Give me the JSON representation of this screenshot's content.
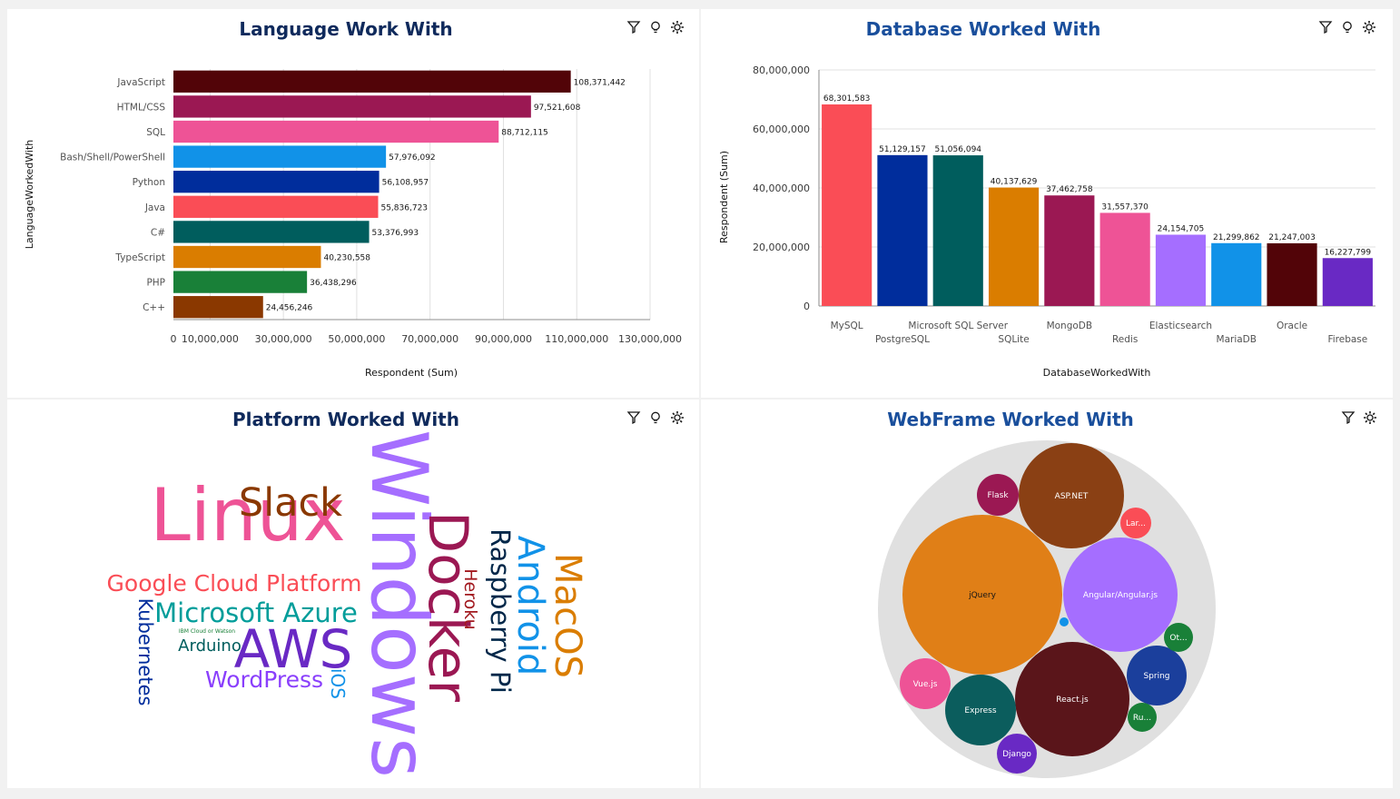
{
  "panels": {
    "language": {
      "title": "Language Work With"
    },
    "database": {
      "title": "Database Worked With"
    },
    "platform": {
      "title": "Platform Worked With"
    },
    "webframe": {
      "title": "WebFrame Worked With"
    }
  },
  "tool_icons": [
    "filter-icon",
    "lightbulb-icon",
    "settings-icon"
  ],
  "chart_data": [
    {
      "type": "bar",
      "orientation": "horizontal",
      "title": "Language Work With",
      "xlabel": "Respondent (Sum)",
      "ylabel": "LanguageWorkedWith",
      "categories": [
        "JavaScript",
        "HTML/CSS",
        "SQL",
        "Bash/Shell/PowerShell",
        "Python",
        "Java",
        "C#",
        "TypeScript",
        "PHP",
        "C++"
      ],
      "values": [
        108371442,
        97521608,
        88712115,
        57976092,
        56108957,
        55836723,
        53376993,
        40230558,
        36438296,
        24456246
      ],
      "labels": [
        "108,371,442",
        "97,521,608",
        "88,712,115",
        "57,976,092",
        "56,108,957",
        "55,836,723",
        "53,376,993",
        "40,230,558",
        "36,438,296",
        "24,456,246"
      ],
      "colors": [
        "#520408",
        "#9b1853",
        "#ee5396",
        "#1192e8",
        "#002d9c",
        "#fa4d56",
        "#005d5d",
        "#da7d00",
        "#198038",
        "#8a3800"
      ],
      "xticks": [
        "0",
        "10,000,000",
        "30,000,000",
        "50,000,000",
        "70,000,000",
        "90,000,000",
        "110,000,000",
        "130,000,000"
      ],
      "xtick_values": [
        0,
        10000000,
        30000000,
        50000000,
        70000000,
        90000000,
        110000000,
        130000000
      ],
      "xlim": [
        0,
        130000000
      ],
      "grid": true
    },
    {
      "type": "bar",
      "orientation": "vertical",
      "title": "Database Worked With",
      "xlabel": "DatabaseWorkedWith",
      "ylabel": "Respondent (Sum)",
      "categories": [
        "MySQL",
        "PostgreSQL",
        "Microsoft SQL Server",
        "SQLite",
        "MongoDB",
        "Redis",
        "Elasticsearch",
        "MariaDB",
        "Oracle",
        "Firebase"
      ],
      "values": [
        68301583,
        51129157,
        51056094,
        40137629,
        37462758,
        31557370,
        24154705,
        21299862,
        21247003,
        16227799
      ],
      "labels": [
        "68,301,583",
        "51,129,157",
        "51,056,094",
        "40,137,629",
        "37,462,758",
        "31,557,370",
        "24,154,705",
        "21,299,862",
        "21,247,003",
        "16,227,799"
      ],
      "colors": [
        "#fa4d56",
        "#002d9c",
        "#005d5d",
        "#da7d00",
        "#9b1853",
        "#ee5396",
        "#a56eff",
        "#1192e8",
        "#520408",
        "#6929c4"
      ],
      "yticks": [
        "0",
        "20,000,000",
        "40,000,000",
        "60,000,000",
        "80,000,000"
      ],
      "ytick_values": [
        0,
        20000000,
        40000000,
        60000000,
        80000000
      ],
      "ylim": [
        0,
        80000000
      ],
      "grid": true
    },
    {
      "type": "other",
      "subtype": "word_cloud",
      "title": "Platform Worked With",
      "words": [
        {
          "text": "Windows",
          "color": "#a56eff",
          "rotated": true
        },
        {
          "text": "Linux",
          "color": "#ee5396",
          "rotated": false
        },
        {
          "text": "Docker",
          "color": "#9b1853",
          "rotated": true
        },
        {
          "text": "AWS",
          "color": "#6929c4",
          "rotated": false
        },
        {
          "text": "Slack",
          "color": "#8a3800",
          "rotated": false
        },
        {
          "text": "Android",
          "color": "#1192e8",
          "rotated": true
        },
        {
          "text": "MacOS",
          "color": "#da7d00",
          "rotated": true
        },
        {
          "text": "Raspberry Pi",
          "color": "#012749",
          "rotated": true
        },
        {
          "text": "Microsoft Azure",
          "color": "#009d9a",
          "rotated": false
        },
        {
          "text": "Google Cloud Platform",
          "color": "#fa4d56",
          "rotated": false
        },
        {
          "text": "WordPress",
          "color": "#8a3ffc",
          "rotated": false
        },
        {
          "text": "Kubernetes",
          "color": "#002d9c",
          "rotated": true
        },
        {
          "text": "Heroku",
          "color": "#a2191f",
          "rotated": true
        },
        {
          "text": "iOS",
          "color": "#1192e8",
          "rotated": true
        },
        {
          "text": "Arduino",
          "color": "#005d5d",
          "rotated": false
        },
        {
          "text": "IBM Cloud or Watson",
          "color": "#198038",
          "rotated": false
        }
      ]
    },
    {
      "type": "other",
      "subtype": "packed_bubble",
      "title": "WebFrame Worked With",
      "bubbles": [
        {
          "label": "jQuery",
          "color": "#e07f17"
        },
        {
          "label": "Angular/Angular.js",
          "color": "#a56eff"
        },
        {
          "label": "React.js",
          "color": "#5a151a"
        },
        {
          "label": "ASP.NET",
          "color": "#8a4014"
        },
        {
          "label": "Express",
          "color": "#0b5d5d"
        },
        {
          "label": "Spring",
          "color": "#1b3f9c"
        },
        {
          "label": "Vue.js",
          "color": "#ee5396"
        },
        {
          "label": "Flask",
          "color": "#9b1853"
        },
        {
          "label": "Django",
          "color": "#6929c4"
        },
        {
          "label": "Lar...",
          "color": "#fa4d56"
        },
        {
          "label": "Ot...",
          "color": "#198038"
        },
        {
          "label": "Ru...",
          "color": "#198038"
        },
        {
          "label": "",
          "color": "#1192e8"
        }
      ]
    }
  ]
}
